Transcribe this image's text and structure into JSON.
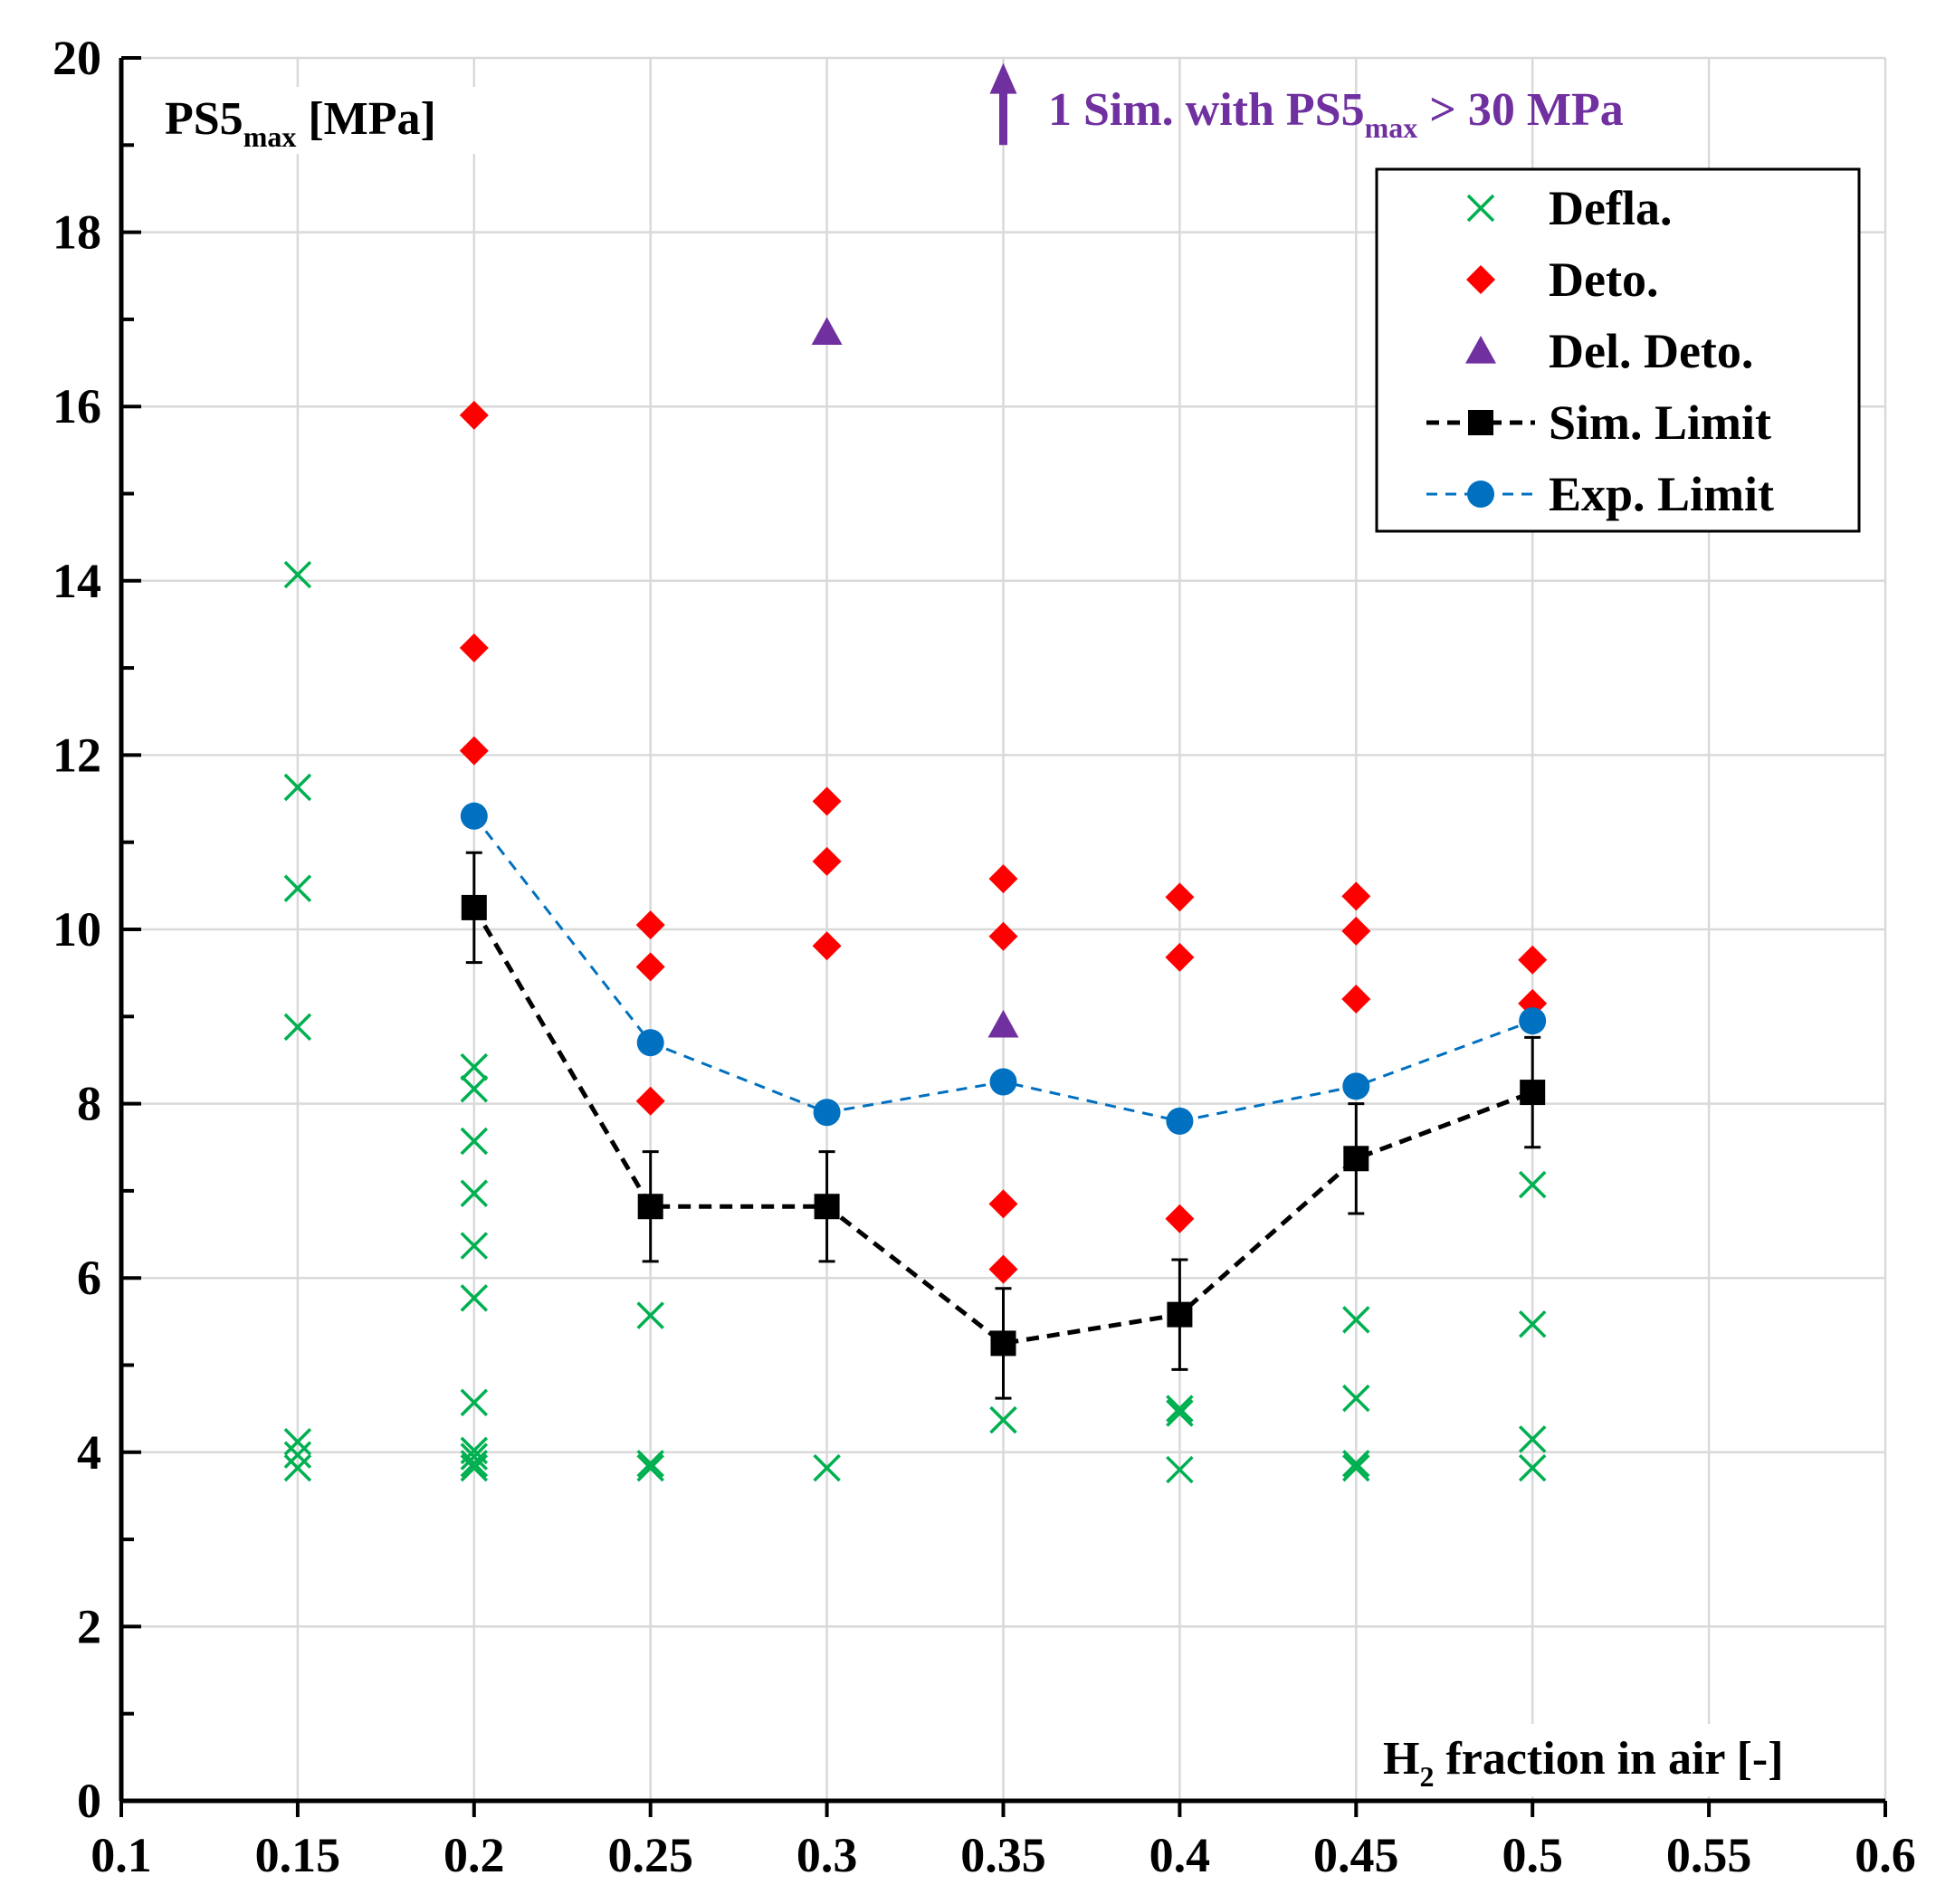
{
  "chart_data": {
    "type": "scatter",
    "xlim": [
      0.1,
      0.6
    ],
    "ylim": [
      0,
      20
    ],
    "x_ticks": [
      0.1,
      0.15,
      0.2,
      0.25,
      0.3,
      0.35,
      0.4,
      0.45,
      0.5,
      0.55,
      0.6
    ],
    "x_tick_labels": [
      "0.1",
      "0.15",
      "0.2",
      "0.25",
      "0.3",
      "0.35",
      "0.4",
      "0.45",
      "0.5",
      "0.55",
      "0.6"
    ],
    "y_ticks": [
      0,
      2,
      4,
      6,
      8,
      10,
      12,
      14,
      16,
      18,
      20
    ],
    "y_tick_labels": [
      "0",
      "2",
      "4",
      "6",
      "8",
      "10",
      "12",
      "14",
      "16",
      "18",
      "20"
    ],
    "y_minor_step": 1,
    "grid": true,
    "ylabel": {
      "main": "PS5",
      "sub": "max",
      "rest": " [MPa]"
    },
    "xlabel": {
      "main": "H",
      "sub": "2",
      "rest": " fraction in air [-]"
    },
    "annotation": {
      "text_before": "1 Sim. with PS5",
      "sub": "max",
      "text_after": " > 30 MPa",
      "arrow_x": 0.35,
      "arrow_from_y": 19.0,
      "arrow_to_y": 19.9,
      "color": "#7030a0"
    },
    "legend_position": "top-right",
    "series": [
      {
        "name": "Defla.",
        "marker": "x",
        "color": "#00b050",
        "points": [
          [
            0.15,
            14.07
          ],
          [
            0.15,
            11.63
          ],
          [
            0.15,
            10.47
          ],
          [
            0.15,
            8.88
          ],
          [
            0.15,
            4.12
          ],
          [
            0.15,
            3.97
          ],
          [
            0.15,
            3.82
          ],
          [
            0.2,
            8.42
          ],
          [
            0.2,
            8.17
          ],
          [
            0.2,
            7.57
          ],
          [
            0.2,
            6.97
          ],
          [
            0.2,
            6.37
          ],
          [
            0.2,
            5.77
          ],
          [
            0.2,
            4.57
          ],
          [
            0.2,
            4.02
          ],
          [
            0.2,
            3.95
          ],
          [
            0.2,
            3.87
          ],
          [
            0.2,
            3.82
          ],
          [
            0.25,
            5.57
          ],
          [
            0.25,
            3.87
          ],
          [
            0.25,
            3.82
          ],
          [
            0.3,
            3.82
          ],
          [
            0.35,
            4.37
          ],
          [
            0.4,
            4.5
          ],
          [
            0.4,
            4.45
          ],
          [
            0.4,
            3.8
          ],
          [
            0.45,
            5.52
          ],
          [
            0.45,
            4.62
          ],
          [
            0.45,
            3.87
          ],
          [
            0.45,
            3.82
          ],
          [
            0.5,
            7.07
          ],
          [
            0.5,
            5.47
          ],
          [
            0.5,
            4.15
          ],
          [
            0.5,
            3.82
          ]
        ]
      },
      {
        "name": "Deto.",
        "marker": "diamond",
        "color": "#ff0000",
        "points": [
          [
            0.2,
            15.9
          ],
          [
            0.2,
            13.23
          ],
          [
            0.2,
            12.05
          ],
          [
            0.25,
            10.05
          ],
          [
            0.25,
            9.57
          ],
          [
            0.25,
            8.03
          ],
          [
            0.3,
            11.47
          ],
          [
            0.3,
            10.78
          ],
          [
            0.3,
            9.81
          ],
          [
            0.35,
            10.58
          ],
          [
            0.35,
            9.92
          ],
          [
            0.35,
            6.85
          ],
          [
            0.35,
            6.1
          ],
          [
            0.4,
            10.37
          ],
          [
            0.4,
            9.68
          ],
          [
            0.4,
            6.68
          ],
          [
            0.45,
            10.38
          ],
          [
            0.45,
            9.98
          ],
          [
            0.45,
            9.2
          ],
          [
            0.5,
            9.65
          ],
          [
            0.5,
            9.15
          ]
        ]
      },
      {
        "name": "Del. Deto.",
        "marker": "triangle",
        "color": "#7030a0",
        "points": [
          [
            0.3,
            16.85
          ],
          [
            0.35,
            8.9
          ]
        ]
      },
      {
        "name": "Sim. Limit",
        "marker": "square",
        "color": "#000000",
        "line": "dashed",
        "points": [
          [
            0.2,
            10.25
          ],
          [
            0.25,
            6.82
          ],
          [
            0.3,
            6.82
          ],
          [
            0.35,
            5.25
          ],
          [
            0.4,
            5.58
          ],
          [
            0.45,
            7.37
          ],
          [
            0.5,
            8.13
          ]
        ],
        "error": [
          0.63,
          0.63,
          0.63,
          0.63,
          0.63,
          0.63,
          0.63
        ]
      },
      {
        "name": "Exp. Limit",
        "marker": "circle",
        "color": "#0070c0",
        "line": "dashed",
        "points": [
          [
            0.2,
            11.3
          ],
          [
            0.25,
            8.7
          ],
          [
            0.3,
            7.9
          ],
          [
            0.35,
            8.25
          ],
          [
            0.4,
            7.8
          ],
          [
            0.45,
            8.2
          ],
          [
            0.5,
            8.95
          ]
        ]
      }
    ]
  }
}
